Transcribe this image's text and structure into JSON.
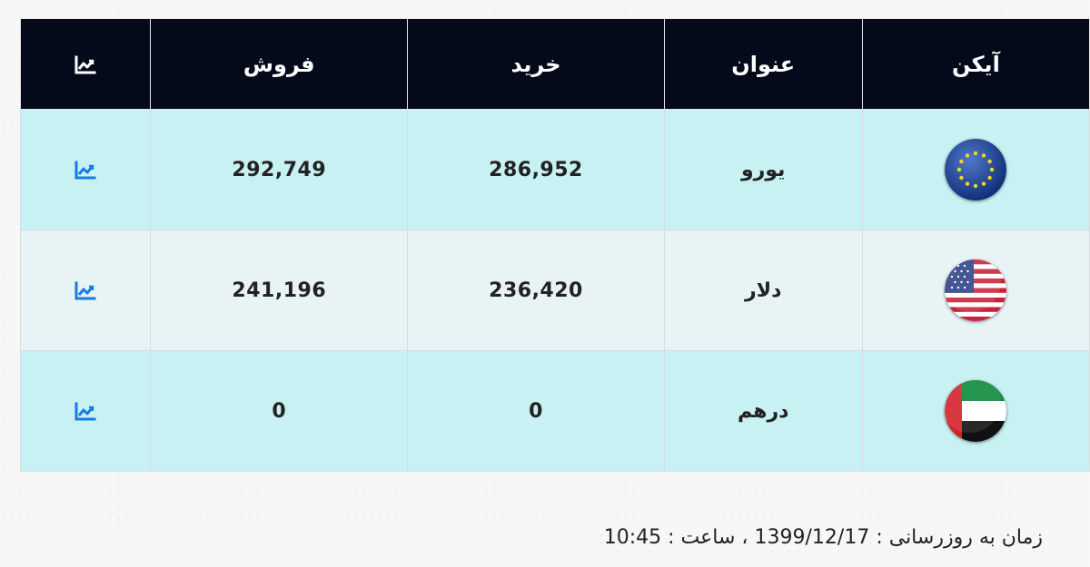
{
  "table": {
    "headers": {
      "icon": "آیکن",
      "title": "عنوان",
      "buy": "خرید",
      "sell": "فروش",
      "chart_icon": "chart-line-icon"
    },
    "rows": [
      {
        "flag": "eu-flag-icon",
        "title": "یورو",
        "buy": "286,952",
        "sell": "292,749"
      },
      {
        "flag": "us-flag-icon",
        "title": "دلار",
        "buy": "236,420",
        "sell": "241,196"
      },
      {
        "flag": "uae-flag-icon",
        "title": "درهم",
        "buy": "0",
        "sell": "0"
      }
    ]
  },
  "footer": {
    "updated_text": "زمان به روزرسانی : 1399/12/17 ، ساعت : 10:45"
  },
  "colors": {
    "header_bg": "#050a1a",
    "row_odd": "#c8f1f4",
    "row_even": "#e8f3f5",
    "chart_icon": "#1a7ce0"
  }
}
